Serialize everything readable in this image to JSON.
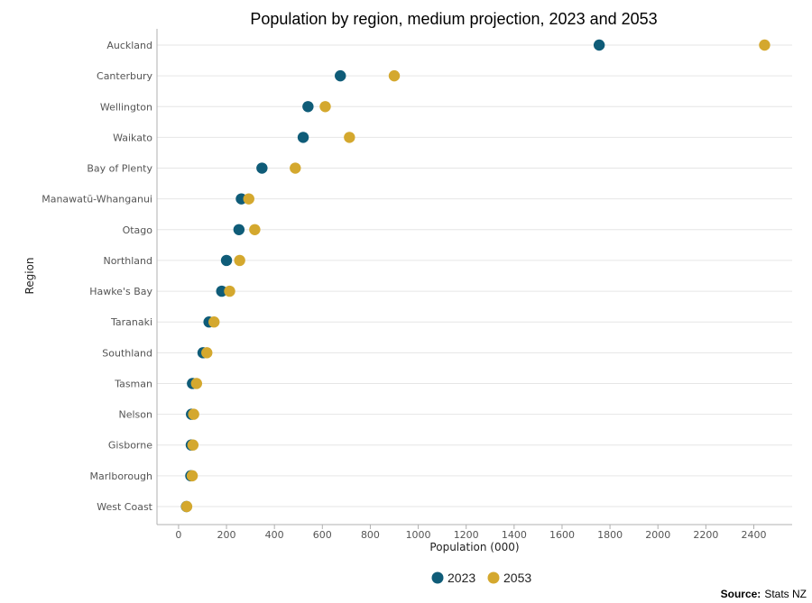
{
  "chart_data": {
    "type": "scatter",
    "title": "Population by region, medium projection, 2023 and 2053",
    "xlabel": "Population (000)",
    "ylabel": "Region",
    "xlim": [
      -90,
      2560
    ],
    "x_ticks": [
      0,
      200,
      400,
      600,
      800,
      1000,
      1200,
      1400,
      1600,
      1800,
      2000,
      2200,
      2400
    ],
    "grid": "horizontal",
    "legend_position": "bottom",
    "categories": [
      "Auckland",
      "Canterbury",
      "Wellington",
      "Waikato",
      "Bay of Plenty",
      "Manawatū-Whanganui",
      "Otago",
      "Northland",
      "Hawke's Bay",
      "Taranaki",
      "Southland",
      "Tasman",
      "Nelson",
      "Gisborne",
      "Marlborough",
      "West Coast"
    ],
    "series": [
      {
        "name": "2023",
        "color": "#0f5c78",
        "values": [
          1755,
          675,
          540,
          520,
          348,
          262,
          252,
          200,
          180,
          127,
          102,
          58,
          54,
          53,
          51,
          33
        ]
      },
      {
        "name": "2053",
        "color": "#d4a82e",
        "values": [
          2445,
          900,
          612,
          713,
          487,
          293,
          318,
          255,
          213,
          148,
          118,
          75,
          63,
          60,
          57,
          34
        ]
      }
    ]
  },
  "source": {
    "label": "Source:",
    "text": "Stats NZ"
  }
}
